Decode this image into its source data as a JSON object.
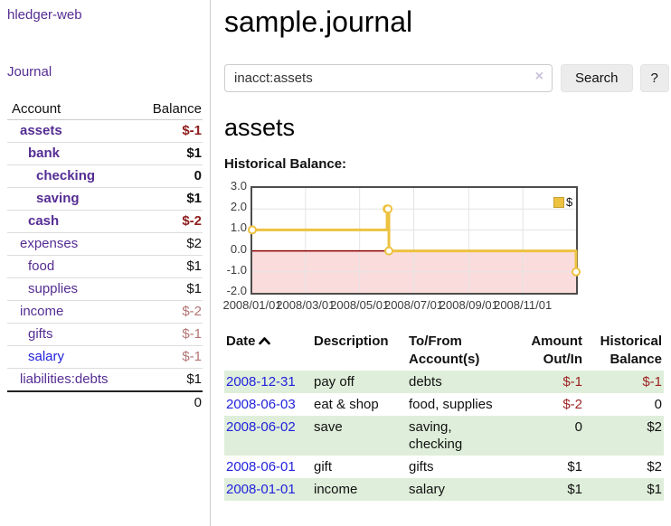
{
  "sidebar": {
    "app_title": "hledger-web",
    "journal_label": "Journal",
    "accounts_table": {
      "header_account": "Account",
      "header_balance": "Balance",
      "rows": [
        {
          "name": "assets",
          "balance": "$-1",
          "depth": 1,
          "bold": true
        },
        {
          "name": "bank",
          "balance": "$1",
          "depth": 2,
          "bold": true
        },
        {
          "name": "checking",
          "balance": "0",
          "depth": 3,
          "bold": true
        },
        {
          "name": "saving",
          "balance": "$1",
          "depth": 3,
          "bold": true
        },
        {
          "name": "cash",
          "balance": "$-2",
          "depth": 2,
          "bold": true
        },
        {
          "name": "expenses",
          "balance": "$2",
          "depth": 1,
          "bold": false
        },
        {
          "name": "food",
          "balance": "$1",
          "depth": 2,
          "bold": false
        },
        {
          "name": "supplies",
          "balance": "$1",
          "depth": 2,
          "bold": false
        },
        {
          "name": "income",
          "balance": "$-2",
          "depth": 1,
          "bold": false
        },
        {
          "name": "gifts",
          "balance": "$-1",
          "depth": 2,
          "bold": false
        },
        {
          "name": "salary",
          "balance": "$-1",
          "depth": 2,
          "bold": false,
          "blue": true
        },
        {
          "name": "liabilities:debts",
          "balance": "$1",
          "depth": 1,
          "bold": false
        }
      ],
      "total": "0"
    }
  },
  "main": {
    "title": "sample.journal",
    "search": {
      "query": "inacct:assets",
      "clear_icon": "×",
      "button_label": "Search",
      "help_label": "?"
    },
    "account_heading": "assets",
    "chart_heading": "Historical Balance:"
  },
  "chart_data": {
    "type": "line",
    "step": true,
    "title": "Historical Balance:",
    "series": [
      {
        "name": "$",
        "color": "#edc240",
        "points": [
          [
            "2008-01-01",
            1
          ],
          [
            "2008-06-01",
            2
          ],
          [
            "2008-06-02",
            2
          ],
          [
            "2008-06-03",
            0
          ],
          [
            "2008-12-31",
            -1
          ]
        ]
      }
    ],
    "point_days": [
      0,
      152,
      153,
      154,
      365
    ],
    "x_tick_labels": [
      "2008/01/01",
      "2008/03/01",
      "2008/05/01",
      "2008/07/01",
      "2008/09/01",
      "2008/11/01"
    ],
    "x_tick_days": [
      0,
      60,
      121,
      182,
      244,
      305
    ],
    "xlim_days": [
      0,
      365
    ],
    "y_ticks": [
      3,
      2,
      1,
      0,
      -1,
      -2
    ],
    "y_tick_labels": [
      "3.0",
      "2.0",
      "1.0",
      "0.0",
      "-1.0",
      "-2.0"
    ],
    "ylim": [
      -2,
      3
    ],
    "grid": true,
    "negative_fill": "#fbdcdc",
    "zero_line_color": "#8b0000",
    "legend": {
      "label": "$",
      "position": "top-right"
    }
  },
  "register_table": {
    "headers": [
      "Date",
      "Description",
      "To/From Account(s)",
      "Amount Out/In",
      "Historical Balance"
    ],
    "rows": [
      {
        "date": "2008-12-31",
        "description": "pay off",
        "accounts": "debts",
        "amount": "$-1",
        "balance": "$-1"
      },
      {
        "date": "2008-06-03",
        "description": "eat & shop",
        "accounts": "food, supplies",
        "amount": "$-2",
        "balance": "0"
      },
      {
        "date": "2008-06-02",
        "description": "save",
        "accounts": "saving, checking",
        "amount": "0",
        "balance": "$2"
      },
      {
        "date": "2008-06-01",
        "description": "gift",
        "accounts": "gifts",
        "amount": "$1",
        "balance": "$2"
      },
      {
        "date": "2008-01-01",
        "description": "income",
        "accounts": "salary",
        "amount": "$1",
        "balance": "$1"
      }
    ]
  },
  "colors": {
    "link_purple": "#552d93",
    "link_blue": "#2222dd",
    "negative_strong": "#8f1d1d",
    "negative_muted": "#b37474",
    "table_negative": "#9d2222",
    "row_stripe_green": "#dfeeda",
    "series_yellow": "#edc240",
    "zero_line_red": "#8b0000",
    "negative_area_pink": "#fbdcdc"
  }
}
